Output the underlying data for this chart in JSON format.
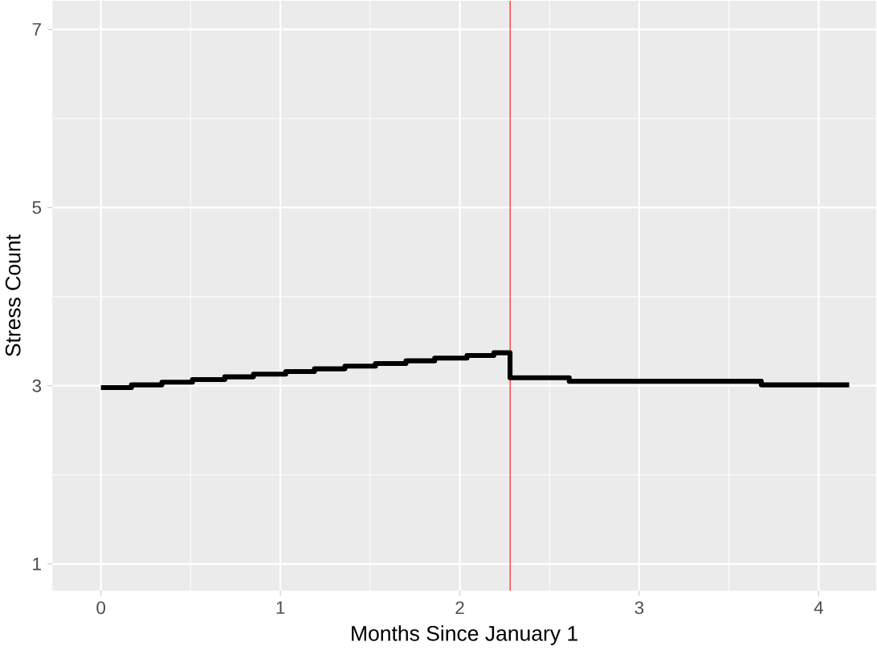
{
  "chart_data": {
    "type": "step",
    "xlabel": "Months Since January 1",
    "ylabel": "Stress Count",
    "x": [
      0,
      0.17,
      0.34,
      0.51,
      0.69,
      0.85,
      1.03,
      1.19,
      1.36,
      1.53,
      1.7,
      1.86,
      2.04,
      2.19,
      2.28,
      2.61,
      3.68,
      4.17
    ],
    "values": [
      2.98,
      3.01,
      3.04,
      3.07,
      3.1,
      3.13,
      3.16,
      3.19,
      3.22,
      3.25,
      3.28,
      3.31,
      3.34,
      3.37,
      3.09,
      3.05,
      3.01,
      3.01
    ],
    "color": "#000000",
    "xlim": [
      -0.27,
      4.32
    ],
    "ylim": [
      0.7,
      7.32
    ],
    "xticks": [
      0,
      1,
      2,
      3,
      4
    ],
    "yticks": [
      1,
      3,
      5,
      7
    ],
    "grid": true,
    "ref_lines": [
      {
        "axis": "x",
        "value": 2.28,
        "color": "#ff0000"
      }
    ]
  }
}
